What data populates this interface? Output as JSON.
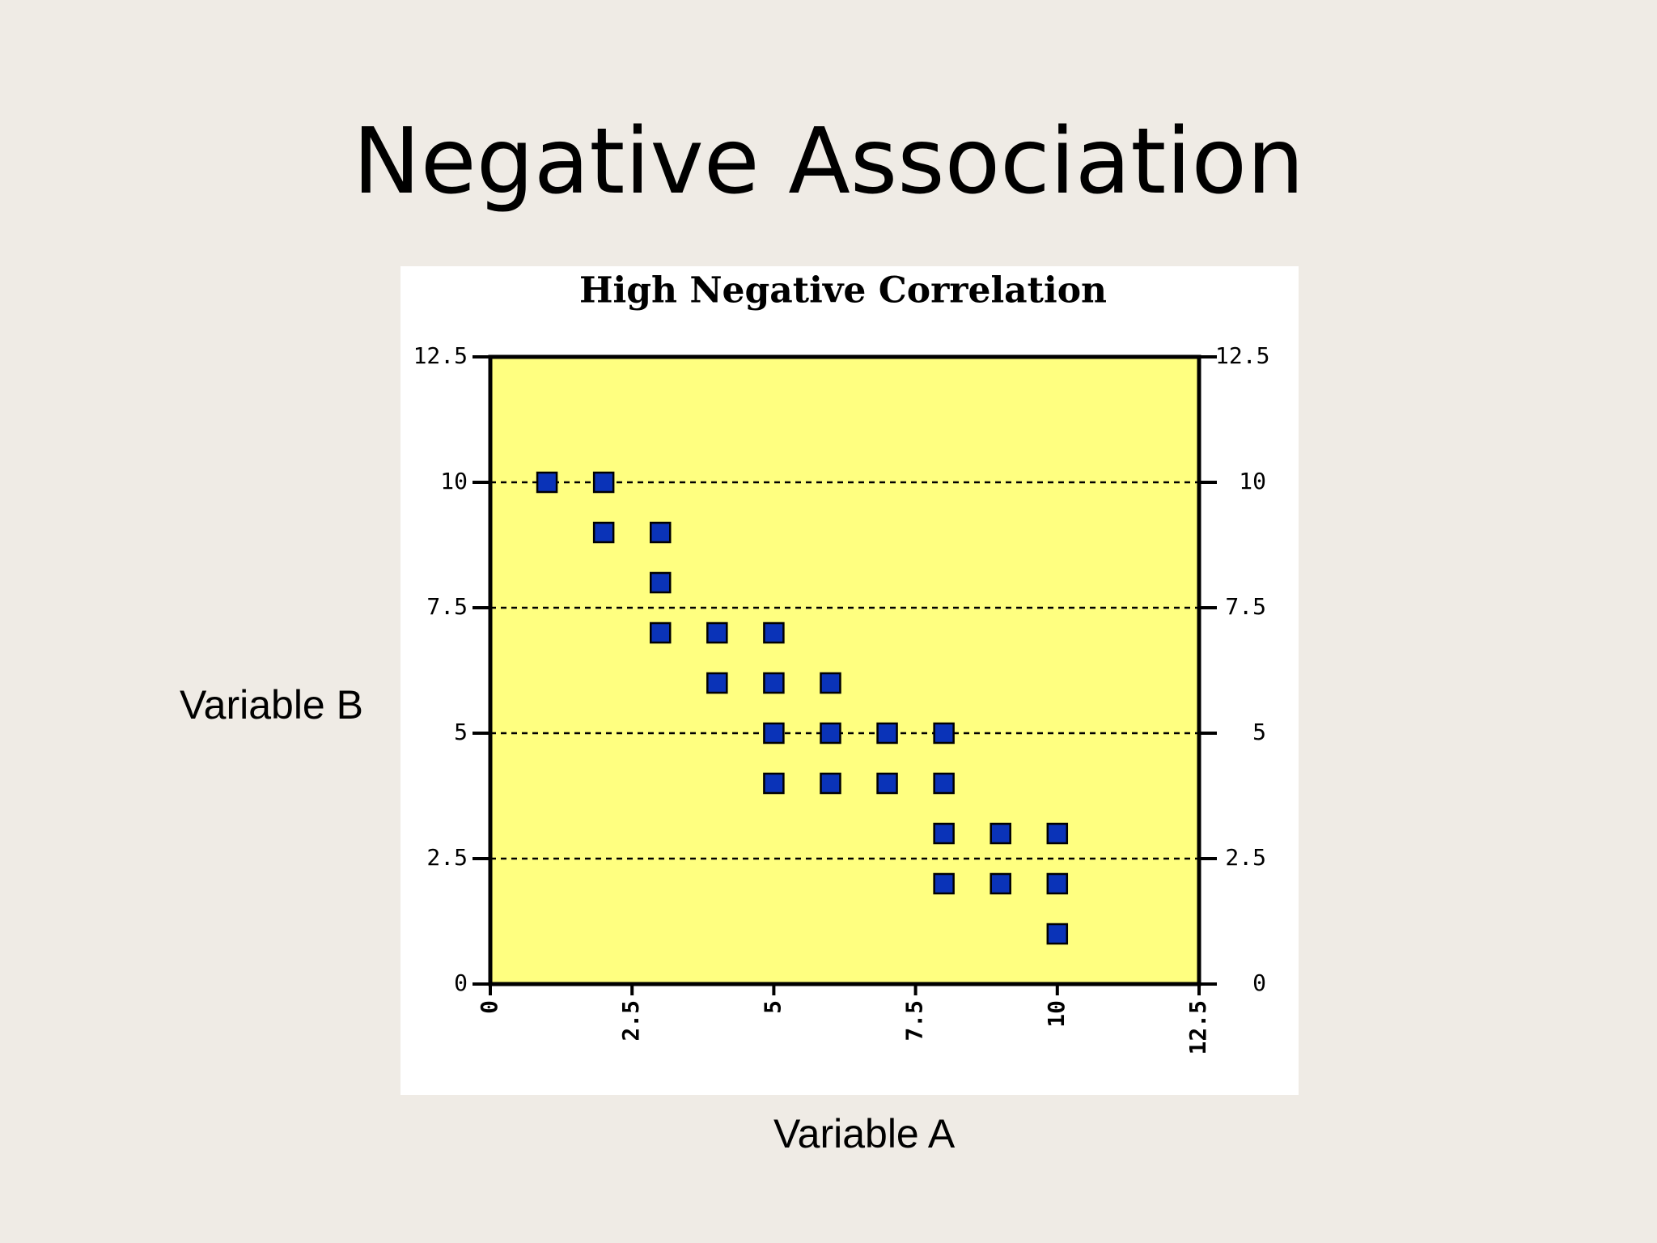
{
  "slide": {
    "title": "Negative Association",
    "xlabel": "Variable A",
    "ylabel": "Variable B"
  },
  "chart_data": {
    "type": "scatter",
    "title": "High Negative Correlation",
    "xlabel": "",
    "ylabel": "",
    "xlim": [
      0,
      12.5
    ],
    "ylim": [
      0,
      12.5
    ],
    "xticks": [
      0,
      2.5,
      5,
      7.5,
      10,
      12.5
    ],
    "yticks": [
      0,
      2.5,
      5,
      7.5,
      10,
      12.5
    ],
    "xtick_labels": [
      "0",
      "2.5",
      "5",
      "7.5",
      "10",
      "12.5"
    ],
    "ytick_labels": [
      "0",
      "2.5",
      "5",
      "7.5",
      "10",
      "12.5"
    ],
    "grid": "horizontal-dashed",
    "secondary_y_axis": true,
    "legend": "none",
    "colors": {
      "plot_background": "#ffff80",
      "marker_fill": "#0a33b8",
      "marker_edge": "#000000",
      "axis": "#000000"
    },
    "points": [
      {
        "x": 1,
        "y": 10
      },
      {
        "x": 2,
        "y": 10
      },
      {
        "x": 2,
        "y": 9
      },
      {
        "x": 3,
        "y": 9
      },
      {
        "x": 3,
        "y": 8
      },
      {
        "x": 3,
        "y": 7
      },
      {
        "x": 4,
        "y": 7
      },
      {
        "x": 5,
        "y": 7
      },
      {
        "x": 4,
        "y": 6
      },
      {
        "x": 5,
        "y": 6
      },
      {
        "x": 6,
        "y": 6
      },
      {
        "x": 5,
        "y": 5
      },
      {
        "x": 6,
        "y": 5
      },
      {
        "x": 7,
        "y": 5
      },
      {
        "x": 8,
        "y": 5
      },
      {
        "x": 5,
        "y": 4
      },
      {
        "x": 6,
        "y": 4
      },
      {
        "x": 7,
        "y": 4
      },
      {
        "x": 8,
        "y": 4
      },
      {
        "x": 8,
        "y": 3
      },
      {
        "x": 9,
        "y": 3
      },
      {
        "x": 10,
        "y": 3
      },
      {
        "x": 8,
        "y": 2
      },
      {
        "x": 9,
        "y": 2
      },
      {
        "x": 10,
        "y": 2
      },
      {
        "x": 10,
        "y": 1
      }
    ]
  }
}
